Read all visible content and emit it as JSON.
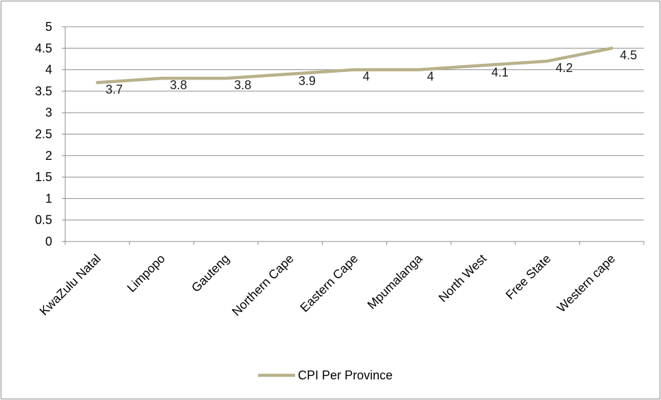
{
  "chart_data": {
    "type": "line",
    "title": "",
    "xlabel": "",
    "ylabel": "",
    "categories": [
      "KwaZulu Natal",
      "Limpopo",
      "Gauteng",
      "Northern Cape",
      "Eastern Cape",
      "Mpumalanga",
      "North West",
      "Free State",
      "Western cape"
    ],
    "series": [
      {
        "name": "CPI Per Province",
        "values": [
          3.7,
          3.8,
          3.8,
          3.9,
          4,
          4,
          4.1,
          4.2,
          4.5
        ],
        "data_labels": [
          "3.7",
          "3.8",
          "3.8",
          "3.9",
          "4",
          "4",
          "4.1",
          "4.2",
          "4.5"
        ],
        "color": "#b8b18a"
      }
    ],
    "ylim": [
      0,
      5
    ],
    "yticks": [
      "0",
      "0.5",
      "1",
      "1.5",
      "2",
      "2.5",
      "3",
      "3.5",
      "4",
      "4.5",
      "5"
    ],
    "grid": true,
    "legend": "bottom"
  }
}
